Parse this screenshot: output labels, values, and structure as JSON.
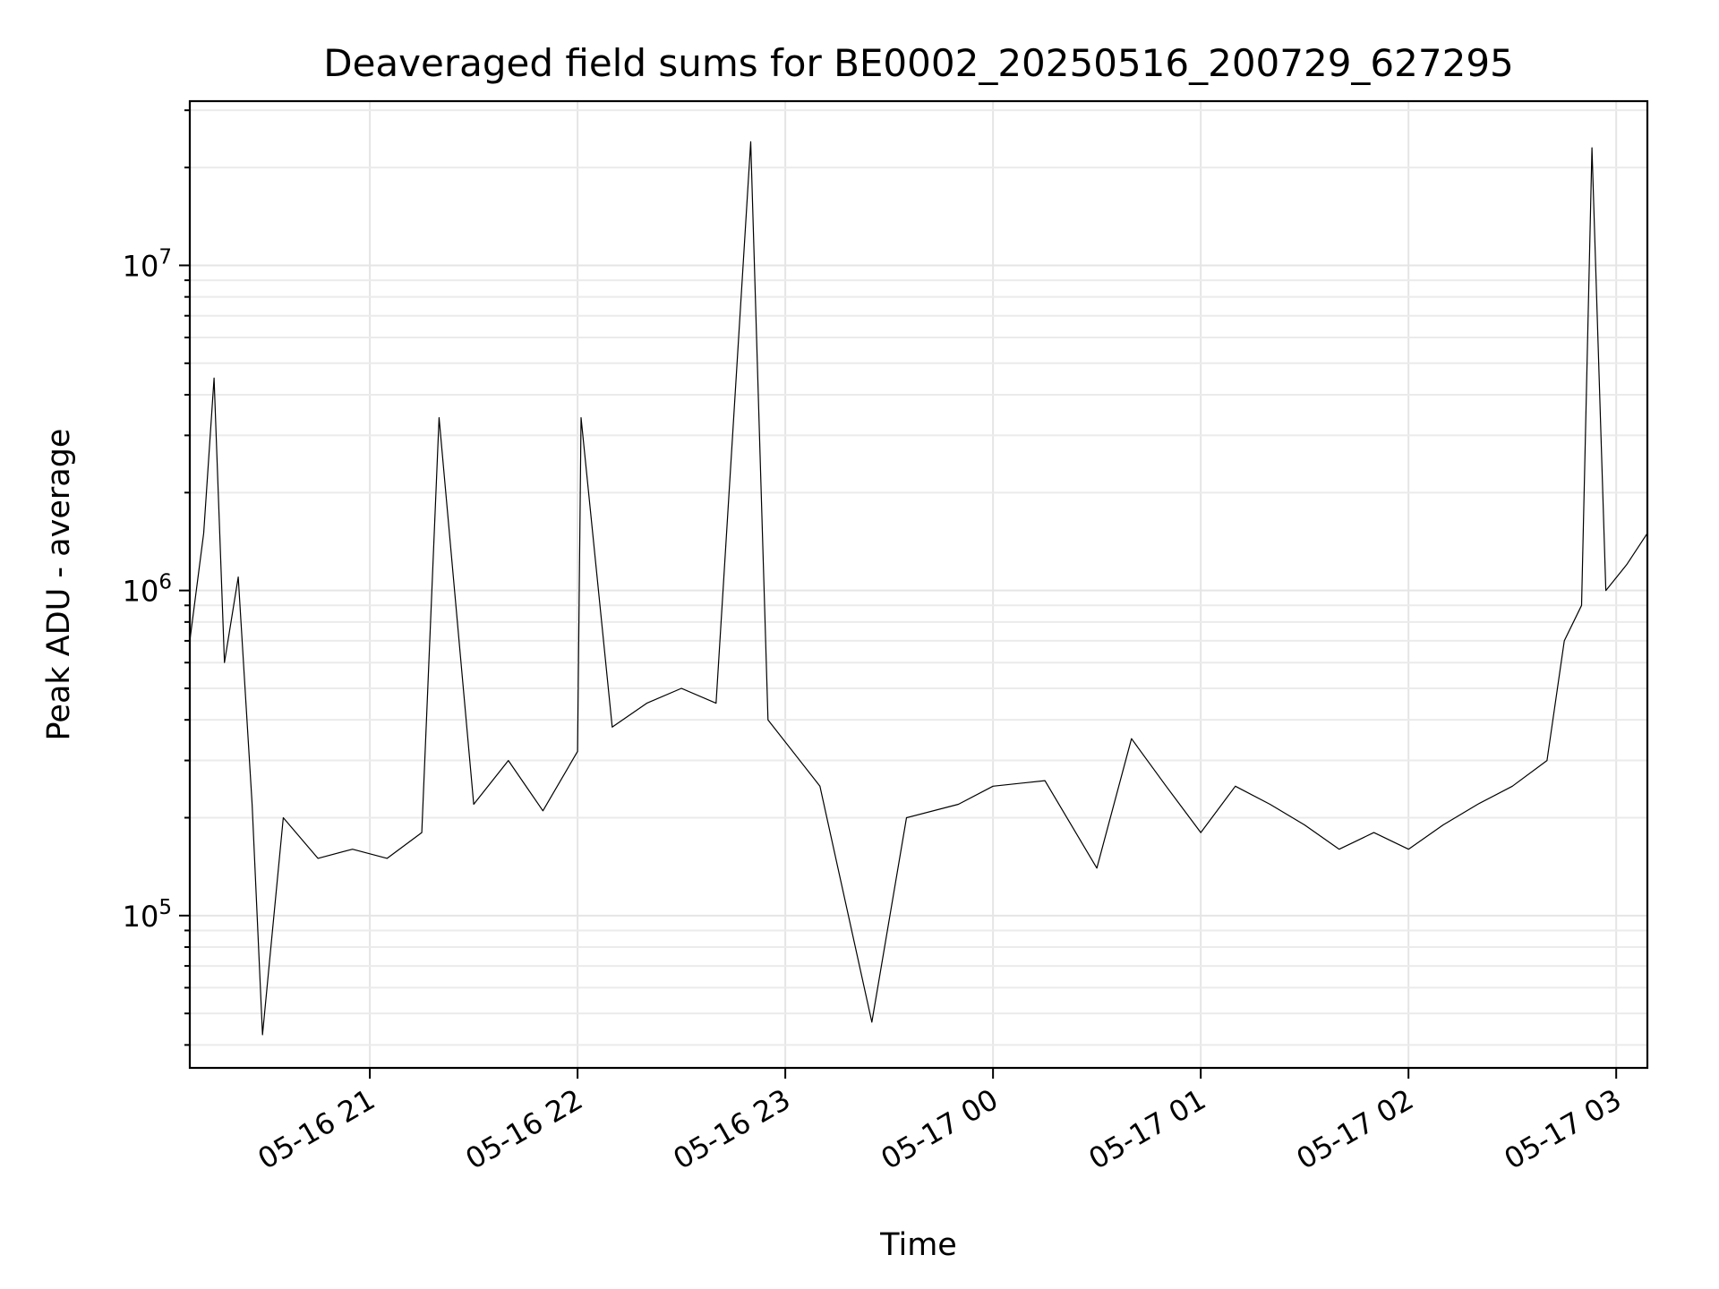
{
  "chart_data": {
    "type": "line",
    "title": "Deaveraged field sums for BE0002_20250516_200729_627295",
    "xlabel": "Time",
    "ylabel": "Peak ADU - average",
    "x_axis": {
      "kind": "time",
      "range": [
        "2025-05-16T20:08:00",
        "2025-05-17T03:09:00"
      ],
      "ticks": [
        "2025-05-16T21:00",
        "2025-05-16T22:00",
        "2025-05-16T23:00",
        "2025-05-17T00:00",
        "2025-05-17T01:00",
        "2025-05-17T02:00",
        "2025-05-17T03:00"
      ],
      "tick_labels": [
        "05-16 21",
        "05-16 22",
        "05-16 23",
        "05-17 00",
        "05-17 01",
        "05-17 02",
        "05-17 03"
      ],
      "tick_rotation": 30
    },
    "y_axis": {
      "scale": "log",
      "range": [
        34000,
        32000000
      ],
      "major_ticks": [
        100000,
        1000000,
        10000000
      ],
      "tick_labels": [
        {
          "base": "10",
          "exp": "5"
        },
        {
          "base": "10",
          "exp": "6"
        },
        {
          "base": "10",
          "exp": "7"
        }
      ]
    },
    "grid": "major and minor",
    "series": [
      {
        "color": "#000000",
        "points": [
          [
            "2025-05-16T20:08:00",
            700000
          ],
          [
            "2025-05-16T20:12:00",
            1500000
          ],
          [
            "2025-05-16T20:15:00",
            4500000
          ],
          [
            "2025-05-16T20:18:00",
            600000
          ],
          [
            "2025-05-16T20:22:00",
            1100000
          ],
          [
            "2025-05-16T20:26:00",
            220000
          ],
          [
            "2025-05-16T20:29:00",
            43000
          ],
          [
            "2025-05-16T20:35:00",
            200000
          ],
          [
            "2025-05-16T20:45:00",
            150000
          ],
          [
            "2025-05-16T20:55:00",
            160000
          ],
          [
            "2025-05-16T21:05:00",
            150000
          ],
          [
            "2025-05-16T21:15:00",
            180000
          ],
          [
            "2025-05-16T21:20:00",
            3400000
          ],
          [
            "2025-05-16T21:30:00",
            220000
          ],
          [
            "2025-05-16T21:40:00",
            300000
          ],
          [
            "2025-05-16T21:50:00",
            210000
          ],
          [
            "2025-05-16T22:00:00",
            320000
          ],
          [
            "2025-05-16T22:01:00",
            3400000
          ],
          [
            "2025-05-16T22:10:00",
            380000
          ],
          [
            "2025-05-16T22:20:00",
            450000
          ],
          [
            "2025-05-16T22:30:00",
            500000
          ],
          [
            "2025-05-16T22:40:00",
            450000
          ],
          [
            "2025-05-16T22:50:00",
            24000000
          ],
          [
            "2025-05-16T22:55:00",
            400000
          ],
          [
            "2025-05-16T23:10:00",
            250000
          ],
          [
            "2025-05-16T23:25:00",
            47000
          ],
          [
            "2025-05-16T23:35:00",
            200000
          ],
          [
            "2025-05-16T23:50:00",
            220000
          ],
          [
            "2025-05-17T00:00:00",
            250000
          ],
          [
            "2025-05-17T00:15:00",
            260000
          ],
          [
            "2025-05-17T00:30:00",
            140000
          ],
          [
            "2025-05-17T00:40:00",
            350000
          ],
          [
            "2025-05-17T00:50:00",
            250000
          ],
          [
            "2025-05-17T01:00:00",
            180000
          ],
          [
            "2025-05-17T01:10:00",
            250000
          ],
          [
            "2025-05-17T01:20:00",
            220000
          ],
          [
            "2025-05-17T01:30:00",
            190000
          ],
          [
            "2025-05-17T01:40:00",
            160000
          ],
          [
            "2025-05-17T01:50:00",
            180000
          ],
          [
            "2025-05-17T02:00:00",
            160000
          ],
          [
            "2025-05-17T02:10:00",
            190000
          ],
          [
            "2025-05-17T02:20:00",
            220000
          ],
          [
            "2025-05-17T02:30:00",
            250000
          ],
          [
            "2025-05-17T02:40:00",
            300000
          ],
          [
            "2025-05-17T02:45:00",
            700000
          ],
          [
            "2025-05-17T02:50:00",
            900000
          ],
          [
            "2025-05-17T02:53:00",
            23000000
          ],
          [
            "2025-05-17T02:57:00",
            1000000
          ],
          [
            "2025-05-17T03:03:00",
            1200000
          ],
          [
            "2025-05-17T03:09:00",
            1500000
          ]
        ]
      }
    ]
  }
}
